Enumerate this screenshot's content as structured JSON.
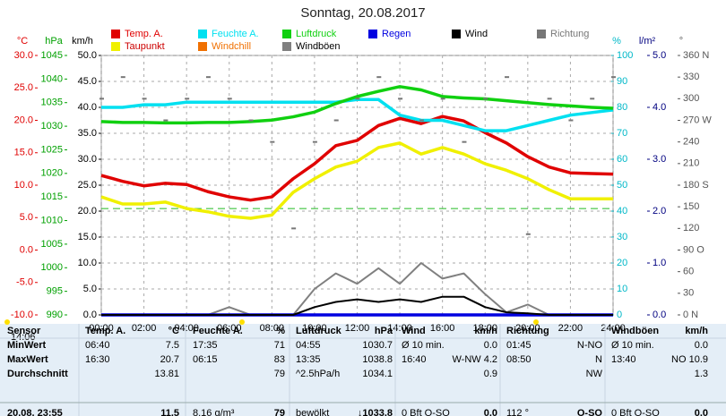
{
  "chart_data": {
    "type": "line",
    "title": "Sonntag, 20.08.2017",
    "current_time": "14:06",
    "x": [
      0,
      1,
      2,
      3,
      4,
      5,
      6,
      7,
      8,
      9,
      10,
      11,
      12,
      13,
      14,
      15,
      16,
      17,
      18,
      19,
      20,
      21,
      22,
      23,
      24
    ],
    "xlim": [
      0,
      24
    ],
    "xticks": [
      {
        "value": 0,
        "label": "00:00"
      },
      {
        "value": 2,
        "label": "02:00"
      },
      {
        "value": 4,
        "label": "04:00"
      },
      {
        "value": 6,
        "label": "06:00"
      },
      {
        "value": 8,
        "label": "08:00"
      },
      {
        "value": 10,
        "label": "10:00"
      },
      {
        "value": 12,
        "label": "12:00"
      },
      {
        "value": 14,
        "label": "14:00"
      },
      {
        "value": 16,
        "label": "16:00"
      },
      {
        "value": 18,
        "label": "18:00"
      },
      {
        "value": 20,
        "label": "20:00"
      },
      {
        "value": 22,
        "label": "22:00"
      },
      {
        "value": 24,
        "label": "24:00"
      }
    ],
    "grid": true,
    "axes": [
      {
        "label": "°C",
        "color": "#e00000",
        "lim": [
          -10,
          30
        ],
        "ticks": [
          {
            "value": -10,
            "label": "-10.0"
          },
          {
            "value": -5,
            "label": "-5.0"
          },
          {
            "value": 0,
            "label": "0.0"
          },
          {
            "value": 5,
            "label": "5.0"
          },
          {
            "value": 10,
            "label": "10.0"
          },
          {
            "value": 15,
            "label": "15.0"
          },
          {
            "value": 20,
            "label": "20.0"
          },
          {
            "value": 25,
            "label": "25.0"
          },
          {
            "value": 30,
            "label": "30.0"
          }
        ]
      },
      {
        "label": "hPa",
        "color": "#00a000",
        "lim": [
          990,
          1045
        ],
        "ticks": [
          990,
          995,
          1000,
          1005,
          1010,
          1015,
          1020,
          1025,
          1030,
          1035,
          1040,
          1045
        ]
      },
      {
        "label": "km/h",
        "color": "#000000",
        "lim": [
          0,
          50
        ],
        "ticks": [
          {
            "value": 0,
            "label": "0.0"
          },
          {
            "value": 5,
            "label": "5.0"
          },
          {
            "value": 10,
            "label": "10.0"
          },
          {
            "value": 15,
            "label": "15.0"
          },
          {
            "value": 20,
            "label": "20.0"
          },
          {
            "value": 25,
            "label": "25.0"
          },
          {
            "value": 30,
            "label": "30.0"
          },
          {
            "value": 35,
            "label": "35.0"
          },
          {
            "value": 40,
            "label": "40.0"
          },
          {
            "value": 45,
            "label": "45.0"
          },
          {
            "value": 50,
            "label": "50.0"
          }
        ]
      },
      {
        "label": "%",
        "color": "#00b8c8",
        "lim": [
          0,
          100
        ],
        "ticks": [
          0,
          10,
          20,
          30,
          40,
          50,
          60,
          70,
          80,
          90,
          100
        ]
      },
      {
        "label": "l/m²",
        "color": "#000080",
        "lim": [
          0,
          5
        ],
        "ticks": [
          {
            "value": 0,
            "label": "0.0"
          },
          {
            "value": 1,
            "label": "1.0"
          },
          {
            "value": 2,
            "label": "2.0"
          },
          {
            "value": 3,
            "label": "3.0"
          },
          {
            "value": 4,
            "label": "4.0"
          },
          {
            "value": 5,
            "label": "5.0"
          }
        ]
      },
      {
        "label": "°",
        "color": "#555555",
        "lim": [
          0,
          360
        ],
        "ticks": [
          {
            "value": 0,
            "label": "0 N"
          },
          30,
          60,
          {
            "value": 90,
            "label": "90 O"
          },
          120,
          150,
          {
            "value": 180,
            "label": "180 S"
          },
          210,
          240,
          {
            "value": 270,
            "label": "270 W"
          },
          300,
          330,
          {
            "value": 360,
            "label": "360 N"
          }
        ]
      }
    ],
    "reference_line": {
      "value": 6.4,
      "axis": 0,
      "color": "#22bb22"
    },
    "series": [
      {
        "name": "Temp. A.",
        "color": "#e00000",
        "axis": 0,
        "values": [
          11.5,
          10.6,
          9.9,
          10.3,
          10.1,
          9.0,
          8.2,
          7.7,
          8.2,
          11.0,
          13.3,
          16.1,
          16.9,
          19.2,
          20.3,
          19.5,
          20.6,
          19.9,
          18.1,
          16.5,
          14.4,
          12.8,
          11.9,
          11.8,
          11.7
        ]
      },
      {
        "name": "Taupunkt",
        "color": "#f0f000",
        "axis": 0,
        "values": [
          8.2,
          7.1,
          7.1,
          7.4,
          6.4,
          5.9,
          5.2,
          4.9,
          5.4,
          8.9,
          11.0,
          12.8,
          13.7,
          15.8,
          16.5,
          14.8,
          15.8,
          14.8,
          13.3,
          12.3,
          11.0,
          9.3,
          7.9,
          7.9,
          7.9
        ]
      },
      {
        "name": "Feuchte A.",
        "color": "#00e0f0",
        "axis": 3,
        "values": [
          80,
          80,
          81,
          81,
          82,
          82,
          82,
          82,
          82,
          82,
          82,
          82,
          83,
          83,
          77,
          75,
          75,
          73,
          71,
          71,
          73,
          75,
          77,
          78,
          79
        ]
      },
      {
        "name": "Windchill",
        "color": "#f07000",
        "axis": 0
      },
      {
        "name": "Luftdruck",
        "color": "#10d010",
        "axis": 1,
        "values": [
          1031.0,
          1030.8,
          1030.8,
          1030.7,
          1030.7,
          1030.8,
          1030.8,
          1031.0,
          1031.3,
          1032.0,
          1033.0,
          1034.8,
          1036.3,
          1037.4,
          1038.4,
          1037.7,
          1036.3,
          1036.0,
          1035.8,
          1035.4,
          1035.0,
          1034.6,
          1034.3,
          1034.0,
          1033.8
        ]
      },
      {
        "name": "Windböen",
        "color": "#808080",
        "axis": 2,
        "values": [
          0,
          0,
          0,
          0,
          0,
          0,
          1.5,
          0,
          0,
          0,
          5.0,
          8.0,
          6.0,
          9.0,
          6.0,
          10.0,
          7.0,
          8.0,
          4.0,
          0.5,
          2.0,
          0,
          0,
          0,
          0
        ]
      },
      {
        "name": "Regen",
        "color": "#0000e0",
        "axis": 4,
        "values": [
          0,
          0,
          0,
          0,
          0,
          0,
          0,
          0,
          0,
          0,
          0,
          0,
          0,
          0,
          0,
          0,
          0,
          0,
          0,
          0,
          0,
          0,
          0,
          0,
          0
        ]
      },
      {
        "name": "Wind",
        "color": "#000000",
        "axis": 2,
        "values": [
          0,
          0,
          0,
          0,
          0,
          0,
          0,
          0,
          0,
          0,
          1.5,
          2.5,
          3.0,
          2.5,
          3.0,
          2.5,
          3.5,
          3.5,
          1.5,
          0.5,
          0.3,
          0,
          0,
          0,
          0
        ]
      },
      {
        "name": "Richtung",
        "color": "#777777",
        "axis": 5,
        "style": "dots",
        "values": [
          300,
          330,
          300,
          270,
          300,
          330,
          300,
          270,
          240,
          120,
          240,
          270,
          300,
          330,
          300,
          270,
          300,
          240,
          300,
          330,
          112,
          300,
          270,
          300,
          330
        ]
      }
    ]
  },
  "table": {
    "header": [
      "Sensor",
      "Temp. A.",
      "°C",
      "Feuchte A.",
      "%",
      "Luftdruck",
      "hPa",
      "Wind",
      "km/h",
      "Richtung",
      null,
      "Windböen",
      "km/h"
    ],
    "rows": [
      [
        "MinWert",
        "06:40",
        "7.5",
        "17:35",
        "71",
        "04:55",
        "1030.7",
        "Ø 10 min.",
        "0.0",
        "01:45",
        "N-NO",
        "Ø 10 min.",
        "0.0"
      ],
      [
        "MaxWert",
        "16:30",
        "20.7",
        "06:15",
        "83",
        "13:35",
        "1038.8",
        "16:40",
        "W-NW 4.2",
        "08:50",
        "N",
        "13:40",
        "NO 10.9"
      ],
      [
        "Durchschnitt",
        null,
        "13.81",
        null,
        "79",
        "^2.5hPa/h",
        "1034.1",
        null,
        "0.9",
        null,
        "NW",
        null,
        "1.3"
      ],
      [
        "20.08. 23:55",
        null,
        "11.5",
        "8.16 g/m³",
        "79",
        "bewölkt",
        "↓1033.8",
        "0 Bft O-SO",
        "0.0",
        "112 °",
        "O-SO",
        "0 Bft O-SO",
        "0.0"
      ]
    ]
  }
}
